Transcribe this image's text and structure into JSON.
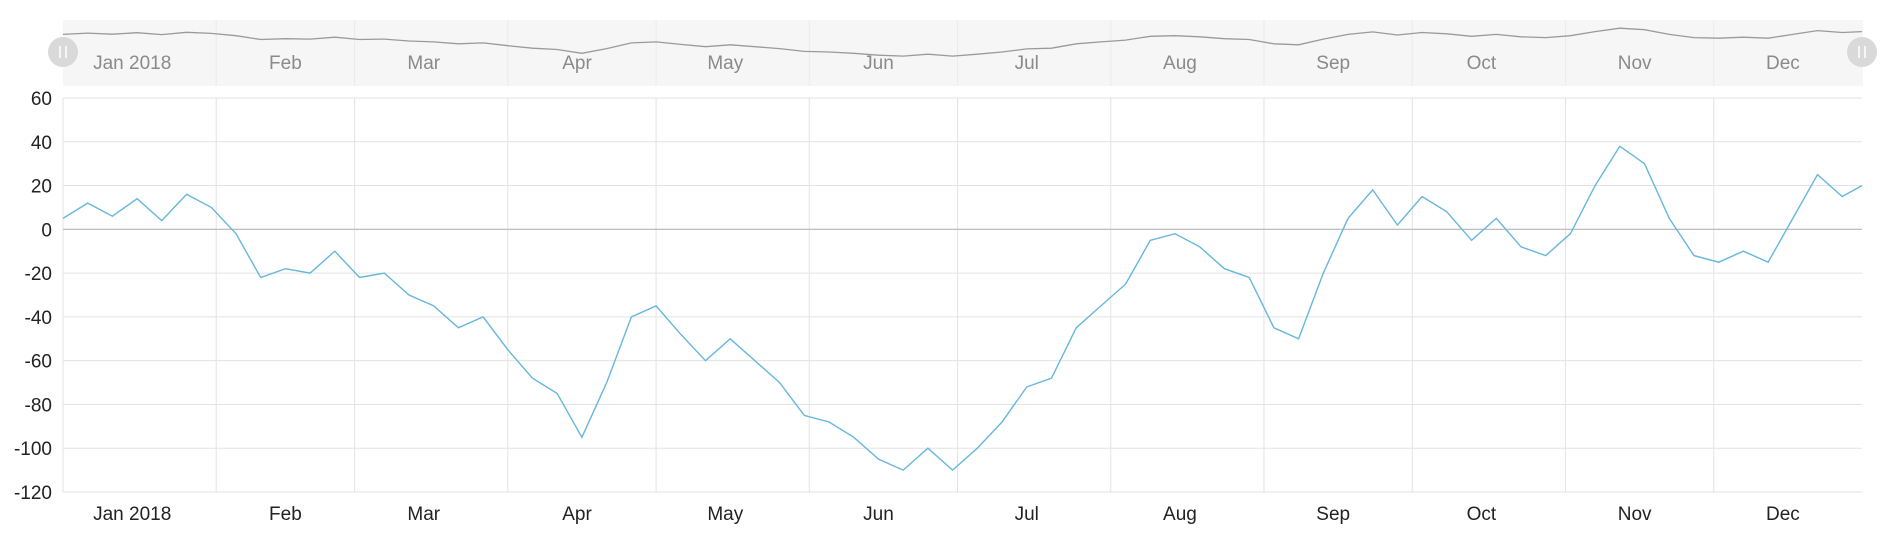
{
  "colors": {
    "series": "#67b7dc",
    "grid": "#e3e3e3",
    "zero_line": "#b8b8b8",
    "navigator_bg": "#f6f6f6",
    "navigator_line": "#9a9a9a",
    "tick_text": "#222222",
    "navigator_text": "#8a8a8a",
    "handle": "#d9d9d9"
  },
  "chart_data": {
    "type": "line",
    "title": "",
    "xlabel": "",
    "ylabel": "",
    "ylim": [
      -120,
      60
    ],
    "y_ticks": [
      "60",
      "40",
      "20",
      "0",
      "-20",
      "-40",
      "-60",
      "-80",
      "-100",
      "-120"
    ],
    "x_range": [
      "2018-01-01",
      "2018-12-31"
    ],
    "x_ticks": [
      {
        "date": "2018-01-15",
        "label": "Jan 2018"
      },
      {
        "date": "2018-02-15",
        "label": "Feb"
      },
      {
        "date": "2018-03-15",
        "label": "Mar"
      },
      {
        "date": "2018-04-15",
        "label": "Apr"
      },
      {
        "date": "2018-05-15",
        "label": "May"
      },
      {
        "date": "2018-06-15",
        "label": "Jun"
      },
      {
        "date": "2018-07-15",
        "label": "Jul"
      },
      {
        "date": "2018-08-15",
        "label": "Aug"
      },
      {
        "date": "2018-09-15",
        "label": "Sep"
      },
      {
        "date": "2018-10-15",
        "label": "Oct"
      },
      {
        "date": "2018-11-15",
        "label": "Nov"
      },
      {
        "date": "2018-12-15",
        "label": "Dec"
      }
    ],
    "grid_dates": [
      "2018-02-01",
      "2018-03-01",
      "2018-04-01",
      "2018-05-01",
      "2018-06-01",
      "2018-07-01",
      "2018-08-01",
      "2018-09-01",
      "2018-10-01",
      "2018-11-01",
      "2018-12-01"
    ],
    "grid": true,
    "navigator": true,
    "series": [
      {
        "x": [
          "2018-01-01",
          "2018-01-06",
          "2018-01-11",
          "2018-01-16",
          "2018-01-21",
          "2018-01-26",
          "2018-01-31",
          "2018-02-05",
          "2018-02-10",
          "2018-02-15",
          "2018-02-20",
          "2018-02-25",
          "2018-03-02",
          "2018-03-07",
          "2018-03-12",
          "2018-03-17",
          "2018-03-22",
          "2018-03-27",
          "2018-04-01",
          "2018-04-06",
          "2018-04-11",
          "2018-04-16",
          "2018-04-21",
          "2018-04-26",
          "2018-05-01",
          "2018-05-06",
          "2018-05-11",
          "2018-05-16",
          "2018-05-21",
          "2018-05-26",
          "2018-05-31",
          "2018-06-05",
          "2018-06-10",
          "2018-06-15",
          "2018-06-20",
          "2018-06-25",
          "2018-06-30",
          "2018-07-05",
          "2018-07-10",
          "2018-07-15",
          "2018-07-20",
          "2018-07-25",
          "2018-07-30",
          "2018-08-04",
          "2018-08-09",
          "2018-08-14",
          "2018-08-19",
          "2018-08-24",
          "2018-08-29",
          "2018-09-03",
          "2018-09-08",
          "2018-09-13",
          "2018-09-18",
          "2018-09-23",
          "2018-09-28",
          "2018-10-03",
          "2018-10-08",
          "2018-10-13",
          "2018-10-18",
          "2018-10-23",
          "2018-10-28",
          "2018-11-02",
          "2018-11-07",
          "2018-11-12",
          "2018-11-17",
          "2018-11-22",
          "2018-11-27",
          "2018-12-02",
          "2018-12-07",
          "2018-12-12",
          "2018-12-17",
          "2018-12-22",
          "2018-12-27",
          "2018-12-31"
        ],
        "values": [
          5,
          12,
          6,
          14,
          4,
          16,
          10,
          -2,
          -22,
          -18,
          -20,
          -10,
          -22,
          -20,
          -30,
          -35,
          -45,
          -40,
          -55,
          -68,
          -75,
          -95,
          -70,
          -40,
          -35,
          -48,
          -60,
          -50,
          -60,
          -70,
          -85,
          -88,
          -95,
          -105,
          -110,
          -100,
          -110,
          -100,
          -88,
          -72,
          -68,
          -45,
          -35,
          -25,
          -5,
          -2,
          -8,
          -18,
          -22,
          -45,
          -50,
          -20,
          5,
          18,
          2,
          15,
          8,
          -5,
          5,
          -8,
          -12,
          -2,
          20,
          38,
          30,
          5,
          -12,
          -15,
          -10,
          -15,
          5,
          25,
          15,
          20
        ]
      }
    ]
  }
}
